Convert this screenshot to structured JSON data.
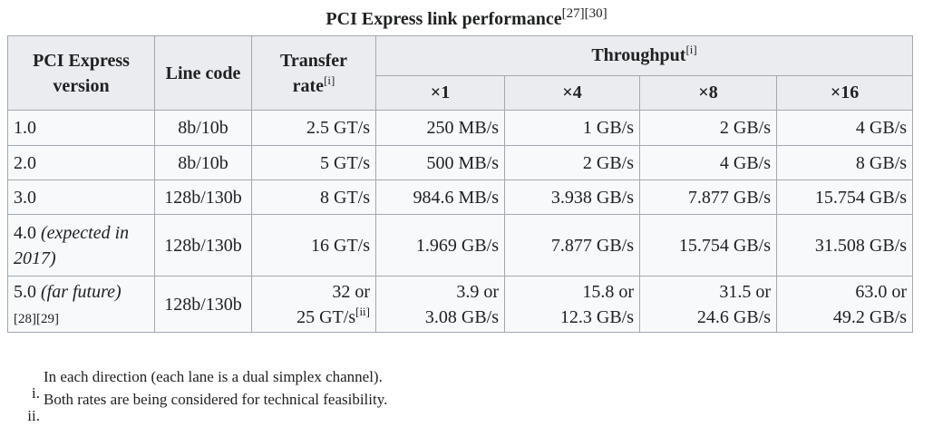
{
  "caption": {
    "title": "PCI Express link performance",
    "refs": "[27][30]"
  },
  "header": {
    "version": "PCI Express version",
    "line_code": "Line code",
    "transfer_rate": "Transfer rate",
    "transfer_rate_note": "[i]",
    "throughput": "Throughput",
    "throughput_note": "[i]",
    "lanes": [
      "×1",
      "×4",
      "×8",
      "×16"
    ]
  },
  "rows": [
    {
      "version": "1.0",
      "line_code": "8b/10b",
      "transfer_rate": "2.5 GT/s",
      "throughput": [
        "250 MB/s",
        "1 GB/s",
        "2 GB/s",
        "4 GB/s"
      ]
    },
    {
      "version": "2.0",
      "line_code": "8b/10b",
      "transfer_rate": "5 GT/s",
      "throughput": [
        "500 MB/s",
        "2 GB/s",
        "4 GB/s",
        "8 GB/s"
      ]
    },
    {
      "version": "3.0",
      "line_code": "128b/130b",
      "transfer_rate": "8 GT/s",
      "throughput": [
        "984.6 MB/s",
        "3.938 GB/s",
        "7.877 GB/s",
        "15.754 GB/s"
      ]
    },
    {
      "version": "4.0",
      "version_note": "(expected in 2017)",
      "line_code": "128b/130b",
      "transfer_rate": "16 GT/s",
      "throughput": [
        "1.969 GB/s",
        "7.877 GB/s",
        "15.754 GB/s",
        "31.508 GB/s"
      ]
    },
    {
      "version": "5.0",
      "version_note": "(far future)",
      "version_refs": "[28][29]",
      "line_code": "128b/130b",
      "transfer_rate_line1": "32 or",
      "transfer_rate_line2": "25 GT/s",
      "transfer_rate_ref": "[ii]",
      "throughput": [
        {
          "line1": "3.9 or",
          "line2": "3.08 GB/s"
        },
        {
          "line1": "15.8 or",
          "line2": "12.3 GB/s"
        },
        {
          "line1": "31.5 or",
          "line2": "24.6 GB/s"
        },
        {
          "line1": "63.0 or",
          "line2": "49.2 GB/s"
        }
      ]
    }
  ],
  "notes": [
    {
      "mark": "i.",
      "text": "In each direction (each lane is a dual simplex channel)."
    },
    {
      "mark": "ii.",
      "text": "Both rates are being considered for technical feasibility."
    }
  ]
}
